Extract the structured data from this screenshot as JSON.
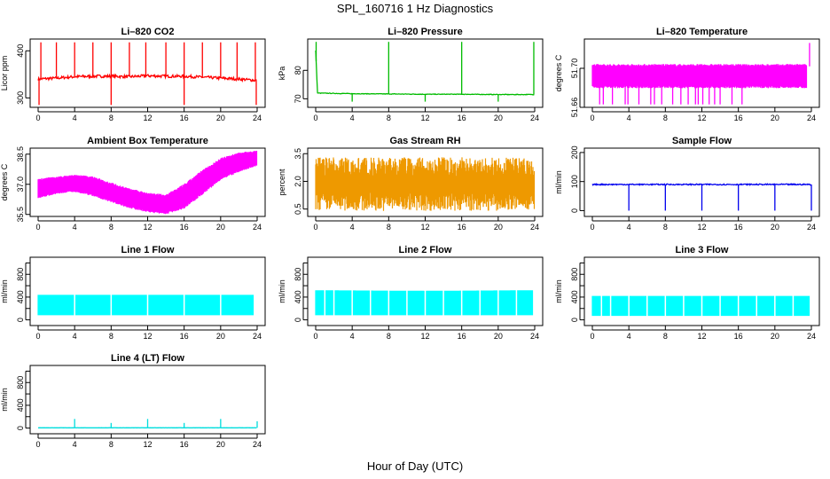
{
  "title": "SPL_160716  1 Hz Diagnostics",
  "x_caption": "Hour of Day (UTC)",
  "chart_data": [
    {
      "type": "line",
      "title": "Li–820 CO2",
      "ylabel": "Licor ppm",
      "color": "#ff0000",
      "xlim": [
        0,
        24
      ],
      "ylim": [
        280,
        425
      ],
      "xticks": [
        0,
        4,
        8,
        12,
        16,
        20,
        24
      ],
      "yticks": [
        300,
        400
      ],
      "ytick_labels": [
        "300",
        "400"
      ],
      "pattern": "baseline",
      "series": [
        {
          "x": [
            0,
            2,
            4,
            6,
            8,
            10,
            12,
            14,
            16,
            18,
            20,
            22,
            24
          ],
          "y": [
            340,
            342,
            345,
            346,
            346,
            345,
            347,
            346,
            346,
            344,
            342,
            340,
            337
          ]
        }
      ],
      "spikes_up": [
        0.3,
        2.0,
        4.0,
        6.0,
        8.0,
        10.0,
        11.8,
        14.0,
        16.0,
        18.0,
        20.0,
        21.8,
        23.8
      ],
      "spike_up_max": 418,
      "spikes_down": [
        0.1,
        8.0,
        16.0,
        23.9
      ],
      "spike_down_min": 285,
      "noise": 3
    },
    {
      "type": "line",
      "title": "Li–820 Pressure",
      "ylabel": "kPa",
      "color": "#00bb00",
      "xlim": [
        0,
        24
      ],
      "ylim": [
        67,
        91
      ],
      "xticks": [
        0,
        4,
        8,
        12,
        16,
        20,
        24
      ],
      "yticks": [
        70,
        80
      ],
      "ytick_labels": [
        "70",
        "80"
      ],
      "pattern": "baseline",
      "series": [
        {
          "x": [
            0,
            0.2,
            4,
            8,
            12,
            16,
            20,
            24
          ],
          "y": [
            87,
            72,
            71.8,
            71.7,
            71.6,
            71.6,
            71.5,
            71.5
          ]
        }
      ],
      "spikes_up": [
        0.05,
        8.0,
        16.0,
        23.9
      ],
      "spike_up_max": 90,
      "spikes_down": [
        4.0,
        12.0,
        20.0
      ],
      "spike_down_min": 69,
      "noise": 0.1
    },
    {
      "type": "line",
      "title": "Li–820 Temperature",
      "ylabel": "degrees C",
      "color": "#ff00ff",
      "xlim": [
        0,
        24
      ],
      "ylim": [
        51.66,
        51.73
      ],
      "xticks": [
        0,
        4,
        8,
        12,
        16,
        20,
        24
      ],
      "yticks": [
        51.66,
        51.7
      ],
      "ytick_labels": [
        "51.66",
        "51.70"
      ],
      "pattern": "band",
      "band": {
        "x": [
          0,
          23.5
        ],
        "low": [
          51.682,
          51.682
        ],
        "high": [
          51.702,
          51.702
        ]
      },
      "spikes_down": [
        0.8,
        1.2,
        2.2,
        3.6,
        3.9,
        5.1,
        6.4,
        6.8,
        7.6,
        8.8,
        9.7,
        10.5,
        11.3,
        11.6,
        12.1,
        12.8,
        13.4,
        14.0,
        15.3,
        16.4
      ],
      "spike_down_min": 51.663,
      "spikes_up": [
        23.8
      ],
      "spike_up_max": 51.726
    },
    {
      "type": "line",
      "title": "Ambient Box Temperature",
      "ylabel": "degrees C",
      "color": "#ff00ff",
      "xlim": [
        0,
        24
      ],
      "ylim": [
        35.4,
        38.8
      ],
      "xticks": [
        0,
        4,
        8,
        12,
        16,
        20,
        24
      ],
      "yticks": [
        35.5,
        37.0,
        38.5
      ],
      "ytick_labels": [
        "35.5",
        "37.0",
        "38.5"
      ],
      "pattern": "band",
      "band": {
        "x": [
          0,
          2,
          4,
          6,
          8,
          10,
          12,
          14,
          16,
          18,
          20,
          22,
          24
        ],
        "low": [
          36.4,
          36.6,
          36.7,
          36.5,
          36.2,
          35.9,
          35.7,
          35.6,
          35.9,
          36.6,
          37.3,
          37.7,
          38.0
        ],
        "high": [
          37.2,
          37.3,
          37.4,
          37.3,
          37.0,
          36.7,
          36.5,
          36.4,
          36.9,
          37.6,
          38.2,
          38.5,
          38.6
        ]
      }
    },
    {
      "type": "line",
      "title": "Gas Stream RH",
      "ylabel": "percent",
      "color": "#ee9900",
      "xlim": [
        0,
        24
      ],
      "ylim": [
        0.1,
        3.8
      ],
      "xticks": [
        0,
        4,
        8,
        12,
        16,
        20,
        24
      ],
      "yticks": [
        0.5,
        2.0,
        3.5
      ],
      "ytick_labels": [
        "0.5",
        "2.0",
        "3.5"
      ],
      "pattern": "dense",
      "band": {
        "x": [
          0,
          24
        ],
        "low": [
          0.4,
          0.4
        ],
        "high": [
          3.3,
          3.3
        ]
      }
    },
    {
      "type": "line",
      "title": "Sample Flow",
      "ylabel": "ml/min",
      "color": "#0000ee",
      "xlim": [
        0,
        24
      ],
      "ylim": [
        -20,
        215
      ],
      "xticks": [
        0,
        4,
        8,
        12,
        16,
        20,
        24
      ],
      "yticks": [
        0,
        100,
        200
      ],
      "ytick_labels": [
        "0",
        "100",
        "200"
      ],
      "pattern": "baseline",
      "series": [
        {
          "x": [
            0,
            24
          ],
          "y": [
            90,
            90
          ]
        }
      ],
      "spikes_down": [
        4.0,
        8.0,
        12.0,
        16.0,
        20.0,
        24.0
      ],
      "spike_down_min": 0,
      "noise": 2
    },
    {
      "type": "line",
      "title": "Line 1 Flow",
      "ylabel": "ml/min",
      "color": "#00ffff",
      "xlim": [
        0,
        24
      ],
      "ylim": [
        -100,
        1100
      ],
      "xticks": [
        0,
        4,
        8,
        12,
        16,
        20,
        24
      ],
      "yticks": [
        0,
        200,
        400,
        600,
        800,
        1000
      ],
      "ytick_labels": [
        "0",
        "",
        "400",
        "",
        "800",
        ""
      ],
      "pattern": "band",
      "band": {
        "x": [
          0,
          23.6
        ],
        "low": [
          80,
          80
        ],
        "high": [
          440,
          440
        ]
      },
      "gaps": [
        4.0,
        8.0,
        12.0,
        16.0,
        20.0
      ]
    },
    {
      "type": "line",
      "title": "Line 2 Flow",
      "ylabel": "ml/min",
      "color": "#00ffff",
      "xlim": [
        0,
        24
      ],
      "ylim": [
        -100,
        1100
      ],
      "xticks": [
        0,
        4,
        8,
        12,
        16,
        20,
        24
      ],
      "yticks": [
        0,
        200,
        400,
        600,
        800,
        1000
      ],
      "ytick_labels": [
        "0",
        "",
        "400",
        "",
        "800",
        ""
      ],
      "pattern": "band",
      "band": {
        "x": [
          0,
          12,
          23.8
        ],
        "low": [
          80,
          80,
          80
        ],
        "high": [
          520,
          510,
          520
        ]
      },
      "gaps": [
        1.0,
        2.0,
        4.0,
        6.0,
        8.0,
        10.0,
        12.0,
        14.0,
        16.0,
        18.0,
        20.0,
        22.0
      ]
    },
    {
      "type": "line",
      "title": "Line 3 Flow",
      "ylabel": "ml/min",
      "color": "#00ffff",
      "xlim": [
        0,
        24
      ],
      "ylim": [
        -100,
        1100
      ],
      "xticks": [
        0,
        4,
        8,
        12,
        16,
        20,
        24
      ],
      "yticks": [
        0,
        200,
        400,
        600,
        800,
        1000
      ],
      "ytick_labels": [
        "0",
        "",
        "400",
        "",
        "800",
        ""
      ],
      "pattern": "band",
      "band": {
        "x": [
          0,
          23.8
        ],
        "low": [
          70,
          70
        ],
        "high": [
          420,
          420
        ]
      },
      "gaps": [
        1.0,
        2.0,
        4.0,
        6.0,
        8.0,
        10.0,
        12.0,
        14.0,
        16.0,
        18.0,
        20.0,
        22.0
      ]
    },
    {
      "type": "line",
      "title": "Line 4 (LT) Flow",
      "ylabel": "ml/min",
      "color": "#00dddd",
      "xlim": [
        0,
        24
      ],
      "ylim": [
        -100,
        1100
      ],
      "xticks": [
        0,
        4,
        8,
        12,
        16,
        20,
        24
      ],
      "yticks": [
        0,
        200,
        400,
        600,
        800,
        1000
      ],
      "ytick_labels": [
        "0",
        "",
        "400",
        "",
        "800",
        ""
      ],
      "pattern": "baseline",
      "series": [
        {
          "x": [
            0,
            24
          ],
          "y": [
            5,
            5
          ]
        }
      ],
      "spikes_up": [
        4.0,
        8.0,
        12.0,
        16.0,
        20.0,
        24.0
      ],
      "spike_up_values": [
        160,
        90,
        160,
        90,
        160,
        120
      ],
      "noise": 1
    }
  ]
}
